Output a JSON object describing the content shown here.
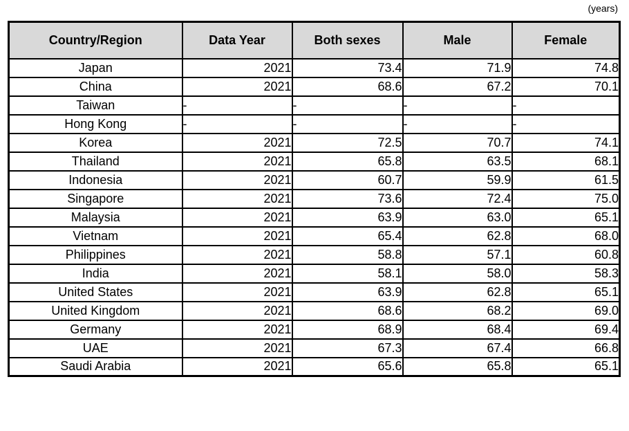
{
  "unit_label": "(years)",
  "colors": {
    "header_bg": "#d9d9d9",
    "border": "#000000",
    "text": "#000000",
    "background": "#ffffff"
  },
  "chart_data": {
    "type": "table",
    "unit": "(years)",
    "columns": [
      "Country/Region",
      "Data Year",
      "Both sexes",
      "Male",
      "Female"
    ],
    "rows": [
      [
        "Japan",
        "2021",
        "73.4",
        "71.9",
        "74.8"
      ],
      [
        "China",
        "2021",
        "68.6",
        "67.2",
        "70.1"
      ],
      [
        "Taiwan",
        "-",
        "-",
        "-",
        "-"
      ],
      [
        "Hong Kong",
        "-",
        "-",
        "-",
        "-"
      ],
      [
        "Korea",
        "2021",
        "72.5",
        "70.7",
        "74.1"
      ],
      [
        "Thailand",
        "2021",
        "65.8",
        "63.5",
        "68.1"
      ],
      [
        "Indonesia",
        "2021",
        "60.7",
        "59.9",
        "61.5"
      ],
      [
        "Singapore",
        "2021",
        "73.6",
        "72.4",
        "75.0"
      ],
      [
        "Malaysia",
        "2021",
        "63.9",
        "63.0",
        "65.1"
      ],
      [
        "Vietnam",
        "2021",
        "65.4",
        "62.8",
        "68.0"
      ],
      [
        "Philippines",
        "2021",
        "58.8",
        "57.1",
        "60.8"
      ],
      [
        "India",
        "2021",
        "58.1",
        "58.0",
        "58.3"
      ],
      [
        "United States",
        "2021",
        "63.9",
        "62.8",
        "65.1"
      ],
      [
        "United Kingdom",
        "2021",
        "68.6",
        "68.2",
        "69.0"
      ],
      [
        "Germany",
        "2021",
        "68.9",
        "68.4",
        "69.4"
      ],
      [
        "UAE",
        "2021",
        "67.3",
        "67.4",
        "66.8"
      ],
      [
        "Saudi Arabia",
        "2021",
        "65.6",
        "65.8",
        "65.1"
      ]
    ]
  }
}
